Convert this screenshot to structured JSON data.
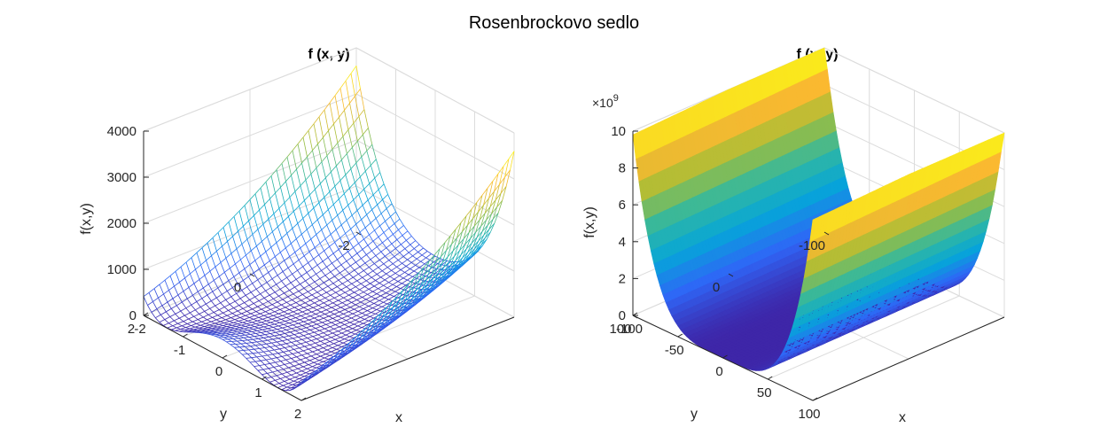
{
  "figure": {
    "title": "Rosenbrockovo sedlo"
  },
  "chart_data": [
    {
      "type": "surface-mesh",
      "title": "f (x, y)",
      "xlabel": "x",
      "ylabel": "y",
      "zlabel": "f(x,y)",
      "xlim": [
        -2,
        2
      ],
      "ylim": [
        -2,
        2
      ],
      "zlim": [
        0,
        4000
      ],
      "x_ticks": [
        "-2",
        "-1",
        "0",
        "1",
        "2"
      ],
      "y_ticks": [
        "-2",
        "0",
        "2"
      ],
      "z_ticks": [
        "0",
        "1000",
        "2000",
        "3000",
        "4000"
      ],
      "function": "100*(y - x^2)^2 + (1 - x)^2",
      "colormap": [
        "#3e26a8",
        "#2f66f7",
        "#06a5d9",
        "#32b8a0",
        "#a6be36",
        "#fbb930",
        "#f9fb15"
      ],
      "grid": true
    },
    {
      "type": "surface",
      "title": "f (x, y)",
      "xlabel": "x",
      "ylabel": "y",
      "zlabel": "f(x,y)",
      "xlim": [
        -100,
        100
      ],
      "ylim": [
        -100,
        100
      ],
      "zlim": [
        0,
        10
      ],
      "z_exponent": "×10",
      "z_exponent_power": "9",
      "x_ticks": [
        "-100",
        "-50",
        "0",
        "50",
        "100"
      ],
      "y_ticks": [
        "-100",
        "0",
        "100"
      ],
      "z_ticks": [
        "0",
        "2",
        "4",
        "6",
        "8",
        "10"
      ],
      "function": "100*(y - x^2)^2 + (1 - x)^2",
      "colormap": [
        "#3e26a8",
        "#2f66f7",
        "#06a5d9",
        "#32b8a0",
        "#a6be36",
        "#fbb930",
        "#f9fb15"
      ],
      "grid": true
    }
  ]
}
